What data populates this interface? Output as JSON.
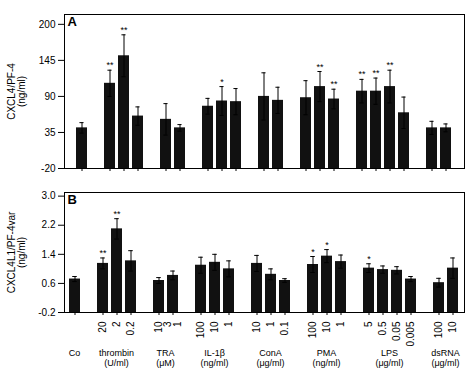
{
  "chart_data": [
    {
      "type": "bar",
      "title": "A",
      "ylabel": "CXCL4/PF-4\n(ng/ml)",
      "color": "#111111",
      "ylim": [
        -20,
        215
      ],
      "yticks": [
        -20,
        35,
        90,
        145,
        200
      ],
      "groups": [
        {
          "categories": [
            null
          ],
          "values": [
            42
          ],
          "errors": [
            8
          ],
          "annotations": [
            null
          ]
        },
        {
          "categories": [
            null,
            null,
            null
          ],
          "values": [
            110,
            152,
            60
          ],
          "errors": [
            20,
            32,
            14
          ],
          "annotations": [
            "**",
            "**",
            null
          ]
        },
        {
          "categories": [
            null,
            null
          ],
          "values": [
            55,
            42
          ],
          "errors": [
            24,
            5
          ],
          "annotations": [
            null,
            null
          ]
        },
        {
          "categories": [
            null,
            null,
            null
          ],
          "values": [
            75,
            83,
            82
          ],
          "errors": [
            12,
            22,
            20
          ],
          "annotations": [
            null,
            "*",
            null
          ]
        },
        {
          "categories": [
            null,
            null
          ],
          "values": [
            90,
            84
          ],
          "errors": [
            36,
            20
          ],
          "annotations": [
            null,
            null
          ]
        },
        {
          "categories": [
            null,
            null,
            null
          ],
          "values": [
            88,
            105,
            86
          ],
          "errors": [
            26,
            23,
            15
          ],
          "annotations": [
            null,
            "**",
            "**"
          ]
        },
        {
          "categories": [
            null,
            null,
            null,
            null
          ],
          "values": [
            98,
            98,
            105,
            65
          ],
          "errors": [
            18,
            20,
            25,
            24
          ],
          "annotations": [
            "**",
            "**",
            "**",
            null
          ]
        },
        {
          "categories": [
            null,
            null
          ],
          "values": [
            42,
            42
          ],
          "errors": [
            10,
            6
          ],
          "annotations": [
            null,
            null
          ]
        }
      ]
    },
    {
      "type": "bar",
      "title": "B",
      "ylabel": "CXCL4L1/PF-4var\n(ng/ml)",
      "color": "#111111",
      "ylim": [
        -0.2,
        3.1
      ],
      "yticks": [
        -0.2,
        0.6,
        1.4,
        2.2,
        {
          "value": 3.0,
          "label": "3.0"
        }
      ],
      "groups": [
        {
          "name": "Co",
          "categories": [
            null
          ],
          "values": [
            0.72
          ],
          "errors": [
            0.07
          ],
          "annotations": [
            null
          ]
        },
        {
          "name": "thrombin\n(U/ml)",
          "categories": [
            "20",
            "2",
            "0.2"
          ],
          "values": [
            1.15,
            2.1,
            1.22
          ],
          "errors": [
            0.15,
            0.28,
            0.28
          ],
          "annotations": [
            "**",
            "**",
            null
          ]
        },
        {
          "name": "TRA\n(μM)",
          "categories": [
            "10",
            "3\n1"
          ],
          "values": [
            0.68,
            0.82
          ],
          "errors": [
            0.08,
            0.12
          ],
          "annotations": [
            null,
            null
          ]
        },
        {
          "name": "IL-1β\n(ng/ml)",
          "categories": [
            "100",
            "10",
            "1"
          ],
          "values": [
            1.1,
            1.18,
            1.0
          ],
          "errors": [
            0.22,
            0.22,
            0.22
          ],
          "annotations": [
            null,
            null,
            null
          ]
        },
        {
          "name": "ConA\n(μg/ml)",
          "categories": [
            "10",
            "1",
            "0.1"
          ],
          "values": [
            1.15,
            0.85,
            0.68
          ],
          "errors": [
            0.22,
            0.15,
            0.05
          ],
          "annotations": [
            null,
            null,
            null
          ]
        },
        {
          "name": "PMA\n(ng/ml)",
          "categories": [
            "100",
            "10",
            "1"
          ],
          "values": [
            1.12,
            1.35,
            1.2
          ],
          "errors": [
            0.22,
            0.18,
            0.18
          ],
          "annotations": [
            "*",
            "*",
            null
          ]
        },
        {
          "name": "LPS\n(μg/ml)",
          "categories": [
            "5",
            "0.5",
            "0.05",
            "0.005"
          ],
          "values": [
            1.02,
            0.98,
            0.96,
            0.72
          ],
          "errors": [
            0.12,
            0.1,
            0.1,
            0.07
          ],
          "annotations": [
            "*",
            null,
            null,
            null
          ]
        },
        {
          "name": "dsRNA\n(μg/ml)",
          "categories": [
            "100",
            "10"
          ],
          "values": [
            0.62,
            1.02
          ],
          "errors": [
            0.12,
            0.28
          ],
          "annotations": [
            null,
            null
          ]
        }
      ]
    }
  ]
}
